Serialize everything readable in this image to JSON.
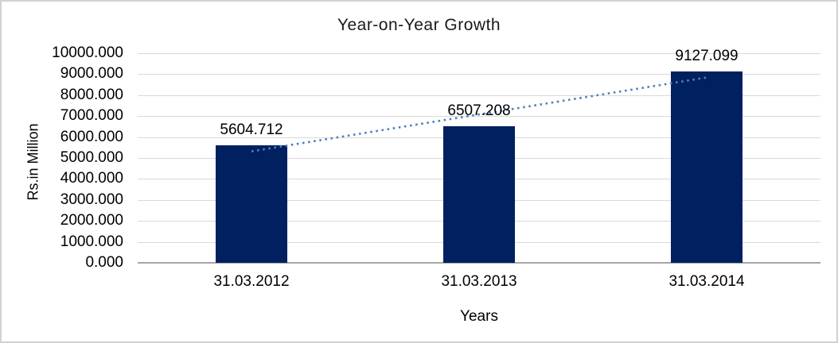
{
  "chart_data": {
    "type": "bar",
    "title": "Year-on-Year Growth",
    "categories": [
      "31.03.2012",
      "31.03.2013",
      "31.03.2014"
    ],
    "values": [
      5604.712,
      6507.208,
      9127.099
    ],
    "data_labels": [
      "5604.712",
      "6507.208",
      "9127.099"
    ],
    "xlabel": "Years",
    "ylabel": "Rs.in Million",
    "ylim": [
      0,
      10000
    ],
    "ytick_interval": 1000,
    "ytick_labels": [
      "10000.000",
      "9000.000",
      "8000.000",
      "7000.000",
      "6000.000",
      "5000.000",
      "4000.000",
      "3000.000",
      "2000.000",
      "1000.000",
      "0.000"
    ],
    "grid": true,
    "legend": "none",
    "trendline": {
      "type": "linear",
      "style": "dotted"
    }
  },
  "colors": {
    "bar": "#002060",
    "trendline": "#4f81bd",
    "gridline": "#d9d9d9",
    "axis_line": "#a6a6a6",
    "frame_border": "#d2d2d2",
    "text": "#000000"
  }
}
